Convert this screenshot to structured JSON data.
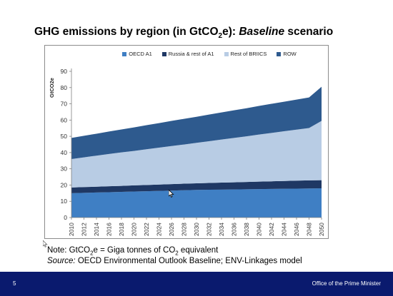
{
  "slide": {
    "title_prefix": "GHG emissions by region (in GtCO",
    "title_sub": "2",
    "title_mid": "e): ",
    "title_em": "Baseline",
    "title_suffix": " scenario",
    "note_prefix": "Note: GtCO",
    "note_sub1": "2",
    "note_mid": "e = Giga tonnes of CO",
    "note_sub2": "2",
    "note_suffix": " equivalent",
    "source_label": "Source:",
    "source_text": " OECD Environmental Outlook Baseline; ENV-Linkages model",
    "slide_number": "5",
    "office": "Office of the Prime Minister"
  },
  "colors": {
    "footer": "#0a1a6e",
    "oecd": "#3f7fc4",
    "russia": "#1f3864",
    "briics": "#b8cce4",
    "row": "#2e5a8e"
  },
  "chart_data": {
    "type": "area",
    "stacked": true,
    "title": "",
    "xlabel": "",
    "ylabel": "GtCO2e",
    "ylim": [
      0,
      90
    ],
    "yticks": [
      0,
      10,
      20,
      30,
      40,
      50,
      60,
      70,
      80,
      90
    ],
    "grid": false,
    "legend_position": "top",
    "x": [
      "2010",
      "2012",
      "2014",
      "2016",
      "2018",
      "2020",
      "2022",
      "2024",
      "2026",
      "2028",
      "2030",
      "2032",
      "2034",
      "2036",
      "2038",
      "2040",
      "2042",
      "2044",
      "2046",
      "2048",
      "2050"
    ],
    "series": [
      {
        "name": "OECD A1",
        "color": "#3f7fc4",
        "values": [
          15,
          15.2,
          15.4,
          15.6,
          15.8,
          16,
          16.2,
          16.4,
          16.6,
          16.8,
          17,
          17.1,
          17.2,
          17.3,
          17.4,
          17.5,
          17.6,
          17.7,
          17.8,
          17.9,
          18
        ]
      },
      {
        "name": "Russia & rest of A1",
        "color": "#1f3864",
        "values": [
          3.5,
          3.55,
          3.6,
          3.65,
          3.7,
          3.8,
          3.85,
          3.9,
          4,
          4.05,
          4.1,
          4.2,
          4.3,
          4.4,
          4.5,
          4.6,
          4.7,
          4.8,
          4.9,
          5,
          5
        ]
      },
      {
        "name": "Rest of BRIICS",
        "color": "#b8cce4",
        "values": [
          17.5,
          18.3,
          19.1,
          19.9,
          20.6,
          21.2,
          22,
          22.7,
          23.4,
          24.1,
          24.9,
          25.7,
          26.5,
          27.3,
          28.1,
          29,
          29.8,
          30.6,
          31.4,
          32.2,
          36.5
        ]
      },
      {
        "name": "ROW",
        "color": "#2e5a8e",
        "values": [
          13,
          13.3,
          13.5,
          13.8,
          14.1,
          14.5,
          14.8,
          15.1,
          15.5,
          15.8,
          16,
          16.4,
          16.7,
          17,
          17.3,
          17.6,
          17.9,
          18.2,
          18.5,
          18.8,
          21
        ]
      }
    ]
  }
}
